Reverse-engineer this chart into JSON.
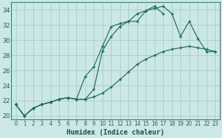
{
  "xlabel": "Humidex (Indice chaleur)",
  "background_color": "#cce8e6",
  "line_color": "#1e6b5e",
  "grid_color": "#aacfcc",
  "xlim": [
    -0.5,
    23.5
  ],
  "ylim": [
    19.5,
    35.0
  ],
  "xticks": [
    0,
    1,
    2,
    3,
    4,
    5,
    6,
    7,
    8,
    9,
    10,
    11,
    12,
    13,
    14,
    15,
    16,
    17,
    18,
    19,
    20,
    21,
    22,
    23
  ],
  "yticks": [
    20,
    22,
    24,
    26,
    28,
    30,
    32,
    34
  ],
  "line1_x": [
    0,
    1,
    2,
    3,
    4,
    5,
    6,
    7,
    8,
    9,
    10,
    11,
    12,
    13,
    14,
    15,
    16,
    17,
    18,
    19,
    20,
    21,
    22,
    23
  ],
  "line1_y": [
    21.5,
    20.0,
    21.0,
    21.5,
    21.8,
    22.2,
    22.4,
    22.2,
    22.2,
    23.5,
    28.6,
    30.5,
    31.8,
    32.5,
    32.5,
    33.9,
    34.5,
    33.5,
    null,
    null,
    null,
    null,
    null,
    null
  ],
  "line2_x": [
    0,
    1,
    2,
    3,
    4,
    5,
    6,
    7,
    8,
    9,
    10,
    11,
    12,
    13,
    14,
    15,
    16,
    17,
    18,
    19,
    20,
    21,
    22,
    23
  ],
  "line2_y": [
    21.5,
    20.0,
    21.0,
    21.5,
    21.8,
    22.2,
    22.4,
    22.2,
    25.2,
    26.5,
    29.2,
    31.8,
    32.2,
    32.5,
    33.5,
    33.9,
    34.2,
    34.5,
    33.5,
    30.5,
    32.5,
    30.2,
    28.5,
    28.5
  ],
  "line3_x": [
    0,
    1,
    2,
    3,
    4,
    5,
    6,
    7,
    8,
    9,
    10,
    11,
    12,
    13,
    14,
    15,
    16,
    17,
    18,
    19,
    20,
    21,
    22,
    23
  ],
  "line3_y": [
    21.5,
    20.0,
    21.0,
    21.5,
    21.8,
    22.2,
    22.4,
    22.2,
    22.2,
    22.5,
    23.0,
    23.8,
    24.8,
    25.8,
    26.8,
    27.5,
    28.0,
    28.5,
    28.8,
    29.0,
    29.2,
    29.0,
    28.8,
    28.5
  ]
}
